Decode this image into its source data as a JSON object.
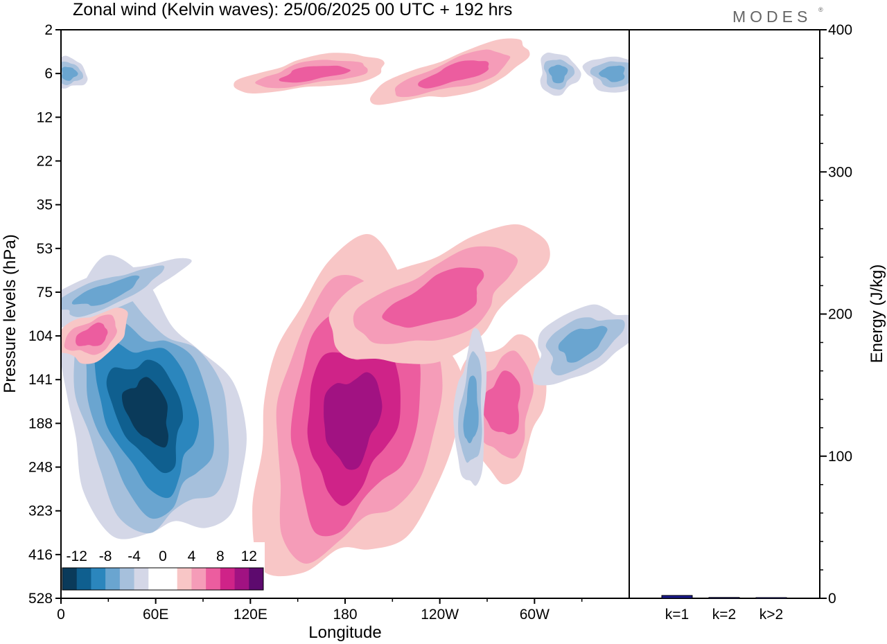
{
  "title": "Zonal wind (Kelvin waves):  25/06/2025  00 UTC  + 192 hrs",
  "logo": {
    "text": "MODES",
    "mark": "®"
  },
  "chart_data": [
    {
      "type": "heatmap",
      "title": "Zonal wind (Kelvin waves):  25/06/2025  00 UTC  + 192 hrs",
      "xlabel": "Longitude",
      "ylabel": "Pressure levels (hPa)",
      "x_ticks": [
        {
          "lon": 0,
          "label": "0"
        },
        {
          "lon": 60,
          "label": "60E"
        },
        {
          "lon": 120,
          "label": "120E"
        },
        {
          "lon": 180,
          "label": "180"
        },
        {
          "lon": 240,
          "label": "120W"
        },
        {
          "lon": 300,
          "label": "60W"
        }
      ],
      "xlim": [
        0,
        360
      ],
      "y_levels": [
        2,
        6,
        12,
        22,
        35,
        53,
        75,
        104,
        141,
        188,
        248,
        323,
        416,
        528
      ],
      "y_order": "top-to-bottom",
      "colorbar": {
        "labels": [
          "-12",
          "-8",
          "-4",
          "0",
          "4",
          "8",
          "12"
        ],
        "levels": [
          -14,
          -12,
          -10,
          -8,
          -6,
          -4,
          -2,
          0,
          2,
          4,
          6,
          8,
          10,
          12,
          14
        ],
        "colors": [
          "#0a3a5a",
          "#0f5f8f",
          "#2b86bd",
          "#6aa5d0",
          "#a6c0dc",
          "#d4d7e7",
          "#ffffff",
          "#ffffff",
          "#f8c6c6",
          "#f59cb8",
          "#ec5d9f",
          "#cf2388",
          "#a11282",
          "#5d0a6e"
        ]
      },
      "features": [
        {
          "kind": "negative",
          "center_lon": 55,
          "center_level": 160,
          "peak_value": -12
        },
        {
          "kind": "positive",
          "center_lon": 180,
          "center_level": 160,
          "peak_value": 10
        },
        {
          "kind": "positive",
          "center_lon": 230,
          "center_level": 75,
          "peak_value": 6
        },
        {
          "kind": "positive",
          "center_lon": 280,
          "center_level": 160,
          "peak_value": 6
        },
        {
          "kind": "negative",
          "center_lon": 260,
          "center_level": 175,
          "peak_value": -6
        },
        {
          "kind": "negative",
          "center_lon": 330,
          "center_level": 110,
          "peak_value": -6
        },
        {
          "kind": "negative",
          "center_lon": 20,
          "center_level": 75,
          "peak_value": -6
        },
        {
          "kind": "positive",
          "center_lon": 20,
          "center_level": 104,
          "peak_value": 6
        },
        {
          "kind": "positive",
          "center_lon": 250,
          "center_level": 6,
          "peak_value": 6
        },
        {
          "kind": "positive",
          "center_lon": 160,
          "center_level": 6,
          "peak_value": 6
        },
        {
          "kind": "negative",
          "center_lon": 5,
          "center_level": 6,
          "peak_value": -6
        },
        {
          "kind": "negative",
          "center_lon": 315,
          "center_level": 6,
          "peak_value": -6
        },
        {
          "kind": "negative",
          "center_lon": 350,
          "center_level": 6,
          "peak_value": -6
        }
      ]
    },
    {
      "type": "bar",
      "categories": [
        "k=1",
        "k=2",
        "k>2"
      ],
      "values": [
        2.0,
        0.6,
        0.5
      ],
      "ylabel": "Energy (J/kg)",
      "ylim": [
        0,
        400
      ],
      "y_ticks": [
        0,
        100,
        200,
        300,
        400
      ],
      "bar_colors": [
        "#1a1a8c",
        "#1a1a8c",
        "#1a1a8c"
      ]
    }
  ]
}
